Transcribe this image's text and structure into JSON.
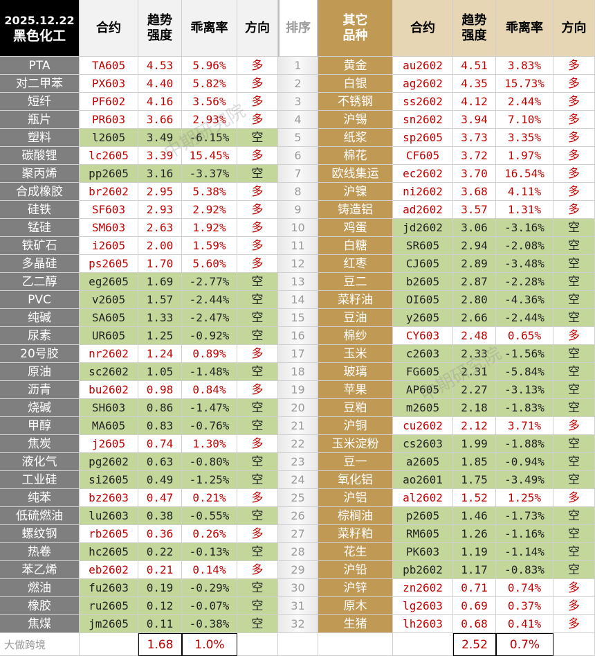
{
  "header": {
    "date": "2025.12.22",
    "sector": "黑色化工",
    "contract": "合约",
    "strength": "趋势\n强度",
    "deviation": "乖离率",
    "direction": "方向",
    "rank": "排序",
    "other": "其它\n品种"
  },
  "left_rows": [
    [
      "PTA",
      "TA605",
      "4.53",
      "5.96%",
      "多"
    ],
    [
      "对二甲苯",
      "PX603",
      "4.40",
      "5.82%",
      "多"
    ],
    [
      "短纤",
      "PF602",
      "4.16",
      "3.56%",
      "多"
    ],
    [
      "瓶片",
      "PR603",
      "3.66",
      "2.93%",
      "多"
    ],
    [
      "塑料",
      "l2605",
      "3.49",
      "-6.15%",
      "空"
    ],
    [
      "碳酸锂",
      "lc2605",
      "3.39",
      "15.45%",
      "多"
    ],
    [
      "聚丙烯",
      "pp2605",
      "3.16",
      "-3.37%",
      "空"
    ],
    [
      "合成橡胶",
      "br2602",
      "2.95",
      "5.38%",
      "多"
    ],
    [
      "硅铁",
      "SF603",
      "2.93",
      "2.92%",
      "多"
    ],
    [
      "锰硅",
      "SM603",
      "2.63",
      "1.92%",
      "多"
    ],
    [
      "铁矿石",
      "i2605",
      "2.00",
      "1.59%",
      "多"
    ],
    [
      "多晶硅",
      "ps2605",
      "1.70",
      "5.60%",
      "多"
    ],
    [
      "乙二醇",
      "eg2605",
      "1.69",
      "-2.77%",
      "空"
    ],
    [
      "PVC",
      "v2605",
      "1.57",
      "-2.44%",
      "空"
    ],
    [
      "纯碱",
      "SA605",
      "1.33",
      "-2.47%",
      "空"
    ],
    [
      "尿素",
      "UR605",
      "1.25",
      "-0.92%",
      "空"
    ],
    [
      "20号胶",
      "nr2602",
      "1.24",
      "0.89%",
      "多"
    ],
    [
      "原油",
      "sc2602",
      "1.05",
      "-1.48%",
      "空"
    ],
    [
      "沥青",
      "bu2602",
      "0.98",
      "0.84%",
      "多"
    ],
    [
      "烧碱",
      "SH603",
      "0.86",
      "-1.47%",
      "空"
    ],
    [
      "甲醇",
      "MA605",
      "0.83",
      "-0.76%",
      "空"
    ],
    [
      "焦炭",
      "j2605",
      "0.74",
      "1.30%",
      "多"
    ],
    [
      "液化气",
      "pg2602",
      "0.63",
      "-0.80%",
      "空"
    ],
    [
      "工业硅",
      "si2605",
      "0.49",
      "-1.25%",
      "空"
    ],
    [
      "纯苯",
      "bz2603",
      "0.47",
      "0.21%",
      "多"
    ],
    [
      "低硫燃油",
      "lu2603",
      "0.38",
      "-0.55%",
      "空"
    ],
    [
      "螺纹钢",
      "rb2605",
      "0.36",
      "0.26%",
      "多"
    ],
    [
      "热卷",
      "hc2605",
      "0.22",
      "-0.13%",
      "空"
    ],
    [
      "苯乙烯",
      "eb2602",
      "0.21",
      "0.14%",
      "多"
    ],
    [
      "燃油",
      "fu2603",
      "0.19",
      "-0.29%",
      "空"
    ],
    [
      "橡胶",
      "ru2605",
      "0.12",
      "-0.07%",
      "空"
    ],
    [
      "焦煤",
      "jm2605",
      "0.11",
      "-0.38%",
      "空"
    ]
  ],
  "ranks": [
    "1",
    "2",
    "3",
    "4",
    "5",
    "6",
    "7",
    "8",
    "9",
    "10",
    "11",
    "12",
    "13",
    "14",
    "15",
    "16",
    "17",
    "18",
    "19",
    "20",
    "21",
    "22",
    "23",
    "24",
    "25",
    "26",
    "27",
    "28",
    "29",
    "30",
    "31",
    "32"
  ],
  "right_rows": [
    [
      "黄金",
      "au2602",
      "4.51",
      "3.83%",
      "多"
    ],
    [
      "白银",
      "ag2602",
      "4.35",
      "15.73%",
      "多"
    ],
    [
      "不锈钢",
      "ss2602",
      "4.12",
      "2.44%",
      "多"
    ],
    [
      "沪锡",
      "sn2602",
      "3.94",
      "7.10%",
      "多"
    ],
    [
      "纸浆",
      "sp2605",
      "3.73",
      "3.35%",
      "多"
    ],
    [
      "棉花",
      "CF605",
      "3.72",
      "1.97%",
      "多"
    ],
    [
      "欧线集运",
      "ec2602",
      "3.70",
      "16.54%",
      "多"
    ],
    [
      "沪镍",
      "ni2602",
      "3.68",
      "4.11%",
      "多"
    ],
    [
      "铸造铝",
      "ad2602",
      "3.57",
      "1.31%",
      "多"
    ],
    [
      "鸡蛋",
      "jd2602",
      "3.06",
      "-3.16%",
      "空"
    ],
    [
      "白糖",
      "SR605",
      "2.94",
      "-2.08%",
      "空"
    ],
    [
      "红枣",
      "CJ605",
      "2.89",
      "-3.48%",
      "空"
    ],
    [
      "豆二",
      "b2605",
      "2.87",
      "-2.28%",
      "空"
    ],
    [
      "菜籽油",
      "OI605",
      "2.80",
      "-4.36%",
      "空"
    ],
    [
      "豆油",
      "y2605",
      "2.66",
      "-2.44%",
      "空"
    ],
    [
      "棉纱",
      "CY603",
      "2.48",
      "0.65%",
      "多"
    ],
    [
      "玉米",
      "c2603",
      "2.33",
      "-1.56%",
      "空"
    ],
    [
      "玻璃",
      "FG605",
      "2.31",
      "-5.84%",
      "空"
    ],
    [
      "苹果",
      "AP605",
      "2.27",
      "-3.13%",
      "空"
    ],
    [
      "豆粕",
      "m2605",
      "2.18",
      "-1.83%",
      "空"
    ],
    [
      "沪铜",
      "cu2602",
      "2.12",
      "3.71%",
      "多"
    ],
    [
      "玉米淀粉",
      "cs2603",
      "1.99",
      "-1.88%",
      "空"
    ],
    [
      "豆一",
      "a2605",
      "1.85",
      "-0.94%",
      "空"
    ],
    [
      "氧化铝",
      "ao2601",
      "1.75",
      "-3.49%",
      "空"
    ],
    [
      "沪铝",
      "al2602",
      "1.52",
      "1.25%",
      "多"
    ],
    [
      "棕榈油",
      "p2605",
      "1.46",
      "-1.73%",
      "空"
    ],
    [
      "菜籽粕",
      "RM605",
      "1.26",
      "-1.16%",
      "空"
    ],
    [
      "花生",
      "PK603",
      "1.19",
      "-1.14%",
      "空"
    ],
    [
      "沪铅",
      "pb2602",
      "1.17",
      "-0.83%",
      "空"
    ],
    [
      "沪锌",
      "zn2602",
      "0.71",
      "0.74%",
      "多"
    ],
    [
      "原木",
      "lg2603",
      "0.69",
      "0.37%",
      "多"
    ],
    [
      "生猪",
      "lh2603",
      "0.68",
      "0.41%",
      "多"
    ]
  ],
  "footer": {
    "left_strength": "1.68",
    "left_deviation": "1.0%",
    "right_strength": "2.52",
    "right_deviation": "0.7%"
  },
  "watermark": "中期研究院",
  "logo": "大做跨境"
}
